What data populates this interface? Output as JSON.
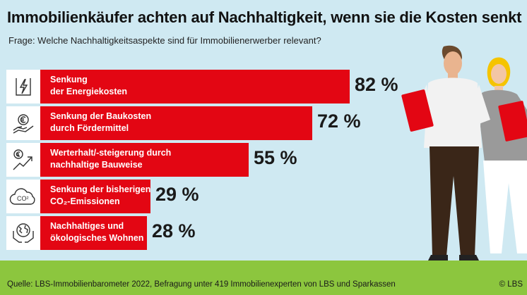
{
  "header": {
    "title": "Immobilienkäufer achten auf Nachhaltigkeit, wenn sie die Kosten senkt",
    "subtitle": "Frage: Welche Nachhaltigkeitsaspekte sind für Immobilienerwerber relevant?"
  },
  "chart_data": {
    "type": "bar",
    "orientation": "horizontal",
    "categories": [
      "Senkung der Energiekosten",
      "Senkung der Baukosten durch Fördermittel",
      "Werterhalt/-steigerung durch nachhaltige Bauweise",
      "Senkung der bisherigen CO₂-Emissionen",
      "Nachhaltiges und ökologisches Wohnen"
    ],
    "values": [
      82,
      72,
      55,
      29,
      28
    ],
    "value_labels": [
      "82 %",
      "72 %",
      "55 %",
      "29 %",
      "28 %"
    ],
    "unit": "%",
    "xlim": [
      0,
      100
    ],
    "bar_color": "#e30613",
    "grid": false,
    "legend": "none"
  },
  "rows": [
    {
      "line1": "Senkung",
      "line2": "der Energiekosten",
      "value": "82 %",
      "icon": "energy-icon"
    },
    {
      "line1": "Senkung der Baukosten",
      "line2": "durch Fördermittel",
      "value": "72 %",
      "icon": "euro-hand-icon"
    },
    {
      "line1": "Werterhalt/-steigerung durch",
      "line2": "nachhaltige Bauweise",
      "value": "55 %",
      "icon": "value-growth-icon"
    },
    {
      "line1": "Senkung der bisherigen",
      "line2": "CO₂-Emissionen",
      "value": "29 %",
      "icon": "co2-cloud-icon"
    },
    {
      "line1": "Nachhaltiges und",
      "line2": "ökologisches Wohnen",
      "value": "28 %",
      "icon": "globe-hands-icon"
    }
  ],
  "co2_badge": "CO²",
  "footer": {
    "source": "Quelle: LBS-Immobilienbarometer 2022, Befragung unter 419 Immobilienexperten von LBS und Sparkassen",
    "copyright": "© LBS"
  },
  "colors": {
    "sky": "#cfe9f2",
    "ground": "#8cc63e",
    "accent": "#e30613"
  },
  "illustration": "two-people-holding-red-folders"
}
